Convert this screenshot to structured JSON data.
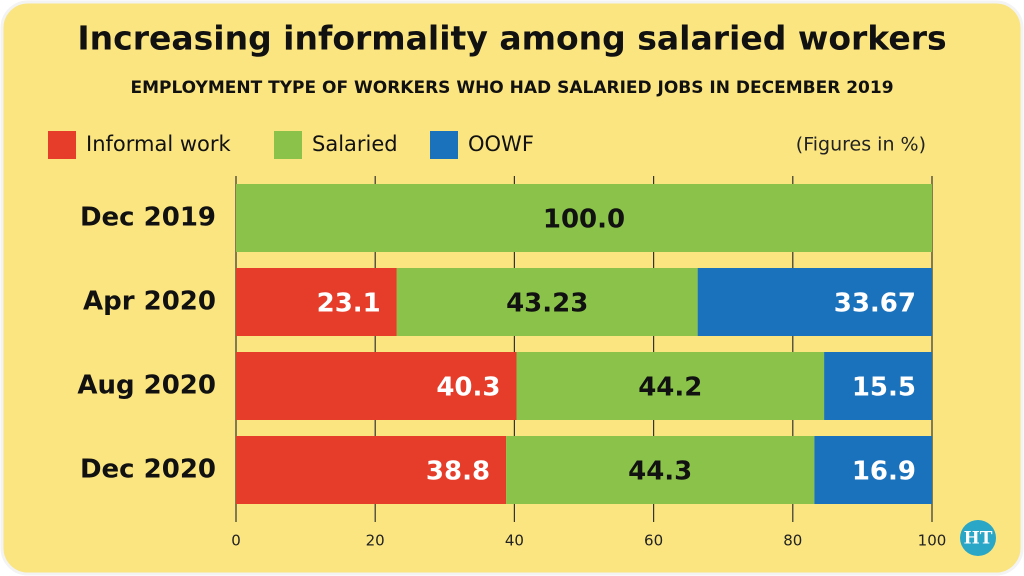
{
  "chart_data": {
    "type": "stacked-bar-horizontal",
    "title": "Increasing informality among salaried workers",
    "subtitle": "EMPLOYMENT TYPE OF WORKERS WHO HAD SALARIED JOBS IN DECEMBER 2019",
    "annotation": "(Figures in %)",
    "source_logo": "HT",
    "categories": [
      "Dec 2019",
      "Apr 2020",
      "Aug 2020",
      "Dec 2020"
    ],
    "series": [
      {
        "name": "Informal work",
        "color": "#e63c2a",
        "values": [
          null,
          23.1,
          40.3,
          38.8
        ]
      },
      {
        "name": "Salaried",
        "color": "#8bc34a",
        "values": [
          100,
          43.23,
          44.2,
          44.3
        ],
        "value_labels": [
          "100.0",
          "43.23",
          "44.2",
          "44.3"
        ]
      },
      {
        "name": "OOWF",
        "color": "#1a72bd",
        "values": [
          null,
          33.67,
          15.5,
          16.9
        ]
      }
    ],
    "xlim": [
      0,
      100
    ],
    "xticks": [
      0,
      20,
      40,
      60,
      80,
      100
    ],
    "grid": true
  }
}
